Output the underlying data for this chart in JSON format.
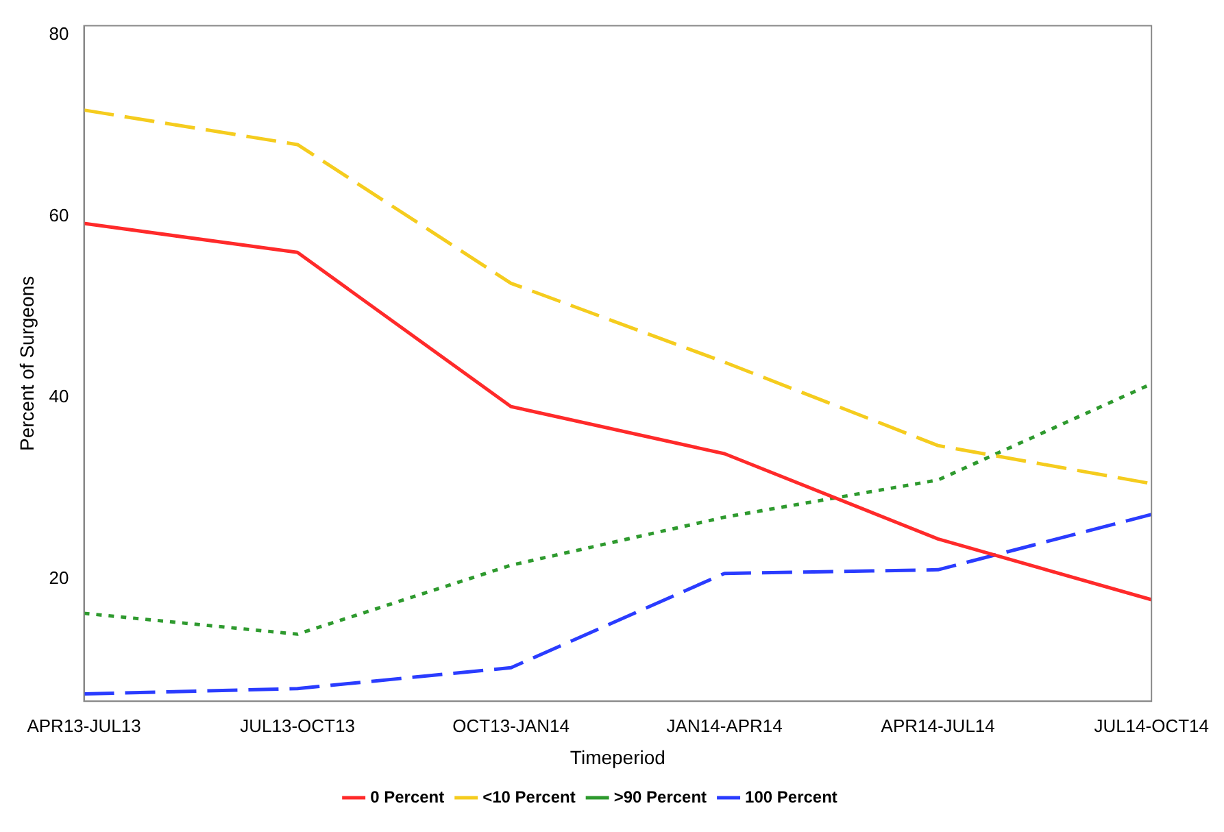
{
  "chart_data": {
    "type": "line",
    "xlabel": "Timeperiod",
    "ylabel": "Percent of Surgeons",
    "categories": [
      "APR13-JUL13",
      "JUL13-OCT13",
      "OCT13-JAN14",
      "JAN14-APR14",
      "APR14-JUL14",
      "JUL14-OCT14"
    ],
    "series": [
      {
        "name": "0 Percent",
        "color": "#ff2a2a",
        "line_style": "solid",
        "values": [
          59.2,
          56,
          39,
          33.8,
          24.4,
          17.7
        ]
      },
      {
        "name": "<10 Percent",
        "color": "#f5cc1e",
        "line_style": "dashed",
        "values": [
          71.7,
          67.9,
          52.6,
          43.9,
          34.7,
          30.5
        ]
      },
      {
        "name": ">90 Percent",
        "color": "#2e9a2e",
        "line_style": "dotted",
        "values": [
          16.2,
          13.9,
          21.5,
          26.8,
          30.9,
          41.5
        ]
      },
      {
        "name": "100 Percent",
        "color": "#2a3cff",
        "line_style": "dashed",
        "values": [
          7.3,
          7.9,
          10.2,
          20.6,
          21,
          27.1
        ]
      }
    ],
    "ylim": [
      6.5,
      81
    ],
    "yticks": [
      20,
      40,
      60,
      80
    ],
    "grid": false,
    "legend": "bottom",
    "marker": "none"
  }
}
